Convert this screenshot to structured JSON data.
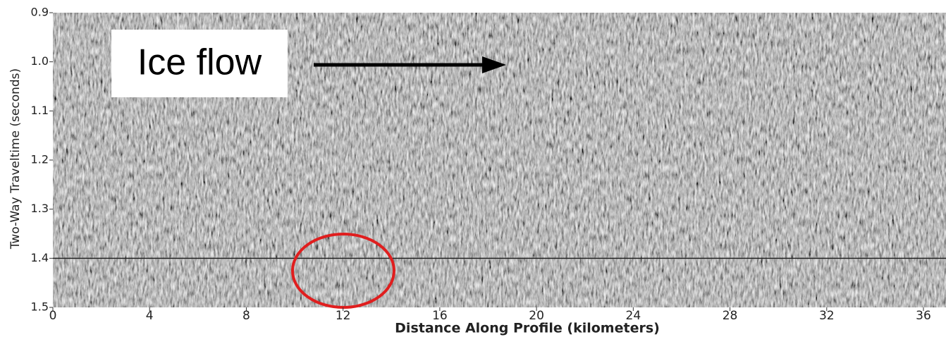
{
  "chart_data": {
    "type": "seismic",
    "x_label": "Distance Along Profile (kilometers)",
    "y_label": "Two-Way Traveltime (seconds)",
    "annotation": "Ice flow",
    "xlim": [
      0,
      37
    ],
    "xticks": [
      0,
      4,
      8,
      12,
      16,
      20,
      24,
      28,
      32,
      36
    ],
    "ylim": [
      0.9,
      1.5
    ],
    "yticks": [
      0.9,
      {
        "value": 1,
        "label": "1.0"
      },
      1.1,
      1.2,
      1.3,
      1.4,
      1.5
    ],
    "y_inverted": true,
    "reference_line": 1.4
  }
}
